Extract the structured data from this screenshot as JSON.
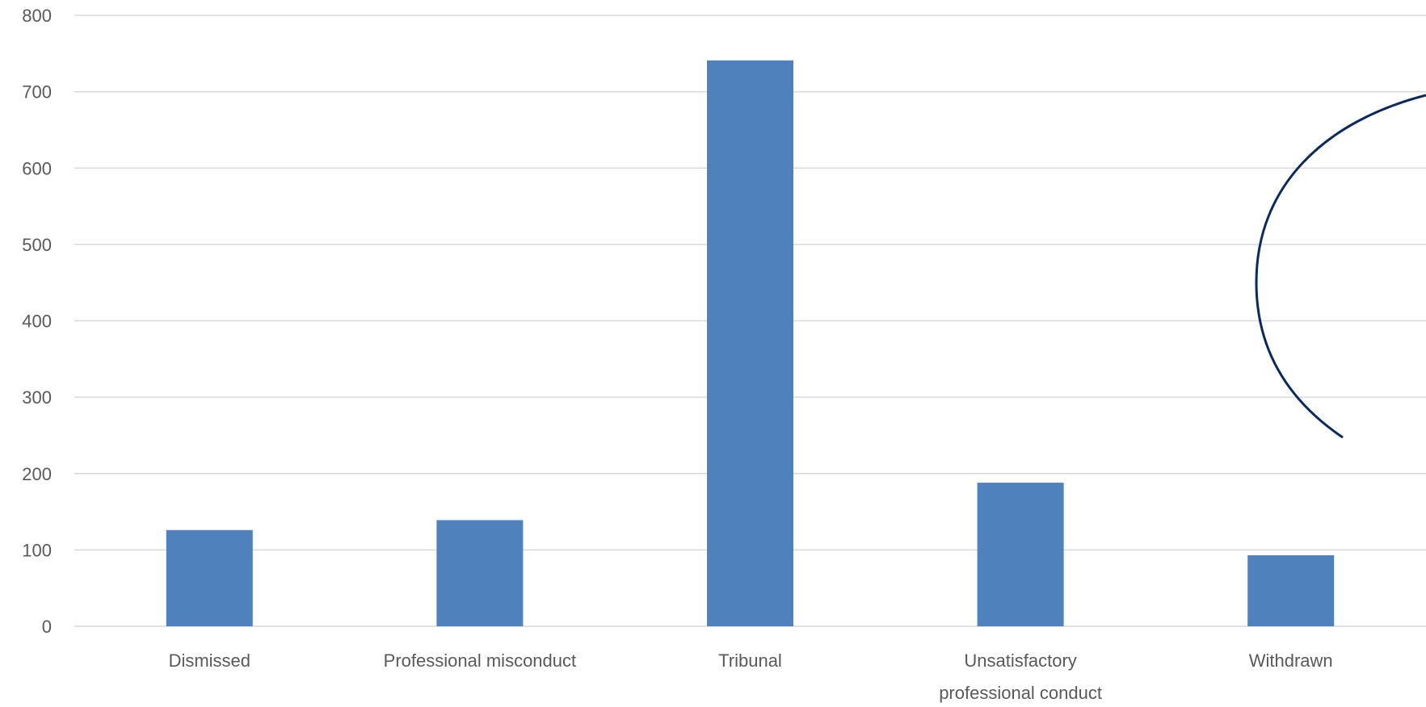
{
  "chart_data": {
    "type": "bar",
    "categories": [
      [
        "Dismissed"
      ],
      [
        "Professional misconduct"
      ],
      [
        "Tribunal"
      ],
      [
        "Unsatisfactory",
        "professional conduct"
      ],
      [
        "Withdrawn"
      ]
    ],
    "values": [
      126,
      139,
      741,
      188,
      93
    ],
    "ylim": [
      0,
      800
    ],
    "yticks": [
      0,
      100,
      200,
      300,
      400,
      500,
      600,
      700,
      800
    ],
    "grid": true,
    "title": "",
    "xlabel": "",
    "ylabel": "",
    "colors": {
      "bar": "#4f81bd",
      "grid": "#d9d9d9",
      "text": "#595959",
      "annotation_stroke": "#0b2a5c"
    }
  },
  "annotation": {
    "shape": "circle-outline",
    "color": "#0b2a5c"
  }
}
